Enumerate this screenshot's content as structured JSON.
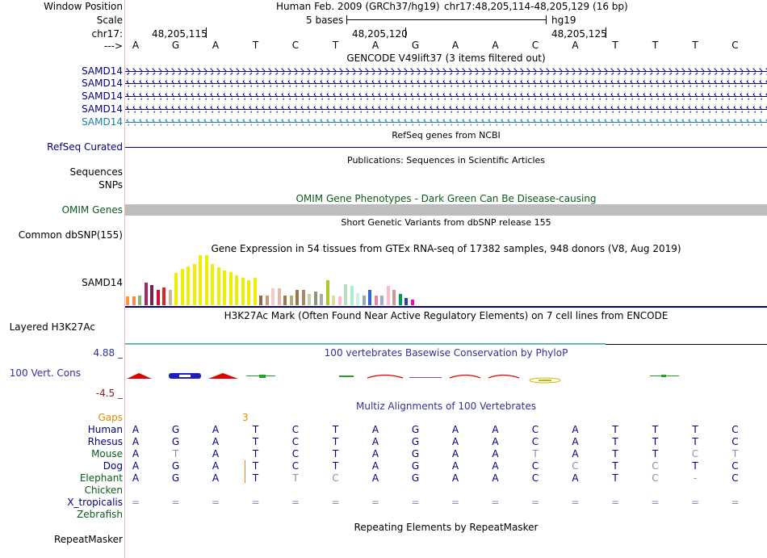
{
  "labels": {
    "window_position": "Window Position",
    "scale": "Scale",
    "chrom": "chr17:",
    "arrow": "--->",
    "samd14": [
      "SAMD14",
      "SAMD14",
      "SAMD14",
      "SAMD14",
      "SAMD14"
    ],
    "refseq": "RefSeq Curated",
    "sequences": "Sequences",
    "snps": "SNPs",
    "omim": "OMIM Genes",
    "common_dbsnp": "Common dbSNP(155)",
    "gtex_gene": "SAMD14",
    "h3k27ac": "Layered H3K27Ac",
    "cons_max": "4.88 _",
    "cons": "100 Vert. Cons",
    "cons_min": "-4.5 _",
    "gaps": "Gaps",
    "species": [
      "Human",
      "Rhesus",
      "Mouse",
      "Dog",
      "Elephant",
      "Chicken",
      "X_tropicalis",
      "Zebrafish"
    ],
    "repeatmasker": "RepeatMasker"
  },
  "header": {
    "assembly": "Human Feb. 2009 (GRCh37/hg19)",
    "position": "chr17:48,205,114-48,205,129 (16 bp)",
    "scale_text": "5 bases",
    "scale_db": "hg19",
    "coords": [
      "48,205,115",
      "48,205,120",
      "48,205,125"
    ]
  },
  "sequence": [
    "A",
    "G",
    "A",
    "T",
    "C",
    "T",
    "A",
    "G",
    "A",
    "A",
    "C",
    "A",
    "T",
    "T",
    "T",
    "C"
  ],
  "tracks": {
    "gencode": "GENCODE V49lift37 (3 items filtered out)",
    "refseq": "RefSeq genes from NCBI",
    "publications": "Publications: Sequences in Scientific Articles",
    "omim": "OMIM Gene Phenotypes - Dark Green Can Be Disease-causing",
    "dbsnp": "Short Genetic Variants from dbSNP release 155",
    "gtex": "Gene Expression in 54 tissues from GTEx RNA-seq of 17382 samples, 948 donors (V8, Aug 2019)",
    "h3k27ac": "H3K27Ac Mark (Often Found Near Active Regulatory Elements) on 7 cell lines from ENCODE",
    "phylop": "100 vertebrates Basewise Conservation by PhyloP",
    "multiz": "Multiz Alignments of 100 Vertebrates",
    "repeatmasker": "Repeating Elements by RepeatMasker"
  },
  "gaps_value": "3",
  "alignments": {
    "Rhesus": [
      "A",
      "G",
      "A",
      "T",
      "C",
      "T",
      "A",
      "G",
      "A",
      "A",
      "C",
      "A",
      "T",
      "T",
      "T",
      "C"
    ],
    "Mouse": [
      "A",
      "T",
      "A",
      "T",
      "C",
      "T",
      "A",
      "G",
      "A",
      "A",
      "T",
      "A",
      "T",
      "T",
      "C",
      "T"
    ],
    "Dog": [
      "A",
      "G",
      "A",
      "T",
      "C",
      "T",
      "A",
      "G",
      "A",
      "A",
      "C",
      "C",
      "T",
      "C",
      "T",
      "C"
    ],
    "Elephant": [
      "A",
      "G",
      "A",
      "T",
      "T",
      "C",
      "A",
      "G",
      "A",
      "A",
      "C",
      "A",
      "T",
      "C",
      "-",
      "C"
    ],
    "X_tropicalis": [
      "=",
      "=",
      "=",
      "=",
      "=",
      "=",
      "=",
      "=",
      "=",
      "=",
      "=",
      "=",
      "=",
      "=",
      "=",
      "="
    ]
  },
  "gtex_colors": [
    "#ff9933",
    "#ff8844",
    "#88bb66",
    "#aa2266",
    "#772255",
    "#cc1133",
    "#dd2222",
    "#c8b89a",
    "#eeee00",
    "#eeee00",
    "#eeee00",
    "#eeee00",
    "#eeee00",
    "#eeee00",
    "#eeee00",
    "#eeee00",
    "#eeee00",
    "#eeee00",
    "#eeee00",
    "#eeee00",
    "#eeee00",
    "#eeee00",
    "#996644",
    "#cc9977",
    "#eecccc",
    "#ddbbaa",
    "#997755",
    "#bbaa77",
    "#997744",
    "#aa8866",
    "#ccccaa",
    "#889977",
    "#aaaaaa",
    "#aacc22",
    "#dddd99",
    "#ffbbcc",
    "#bbddbb",
    "#aaeecc",
    "#cceeee",
    "#99aaaa",
    "#3366cc",
    "#dd88aa",
    "#aaaacc",
    "#ffbbcc",
    "#cc9999",
    "#009966",
    "#2244aa",
    "#ff00cc"
  ],
  "gtex_values": [
    0.18,
    0.18,
    0.2,
    0.45,
    0.4,
    0.3,
    0.35,
    0.3,
    0.65,
    0.72,
    0.78,
    0.82,
    1.0,
    1.0,
    0.82,
    0.76,
    0.7,
    0.66,
    0.6,
    0.55,
    0.5,
    0.55,
    0.2,
    0.2,
    0.34,
    0.34,
    0.2,
    0.2,
    0.3,
    0.3,
    0.22,
    0.28,
    0.22,
    0.5,
    0.2,
    0.18,
    0.42,
    0.38,
    0.24,
    0.2,
    0.3,
    0.2,
    0.2,
    0.38,
    0.3,
    0.22,
    0.14,
    0.12
  ]
}
